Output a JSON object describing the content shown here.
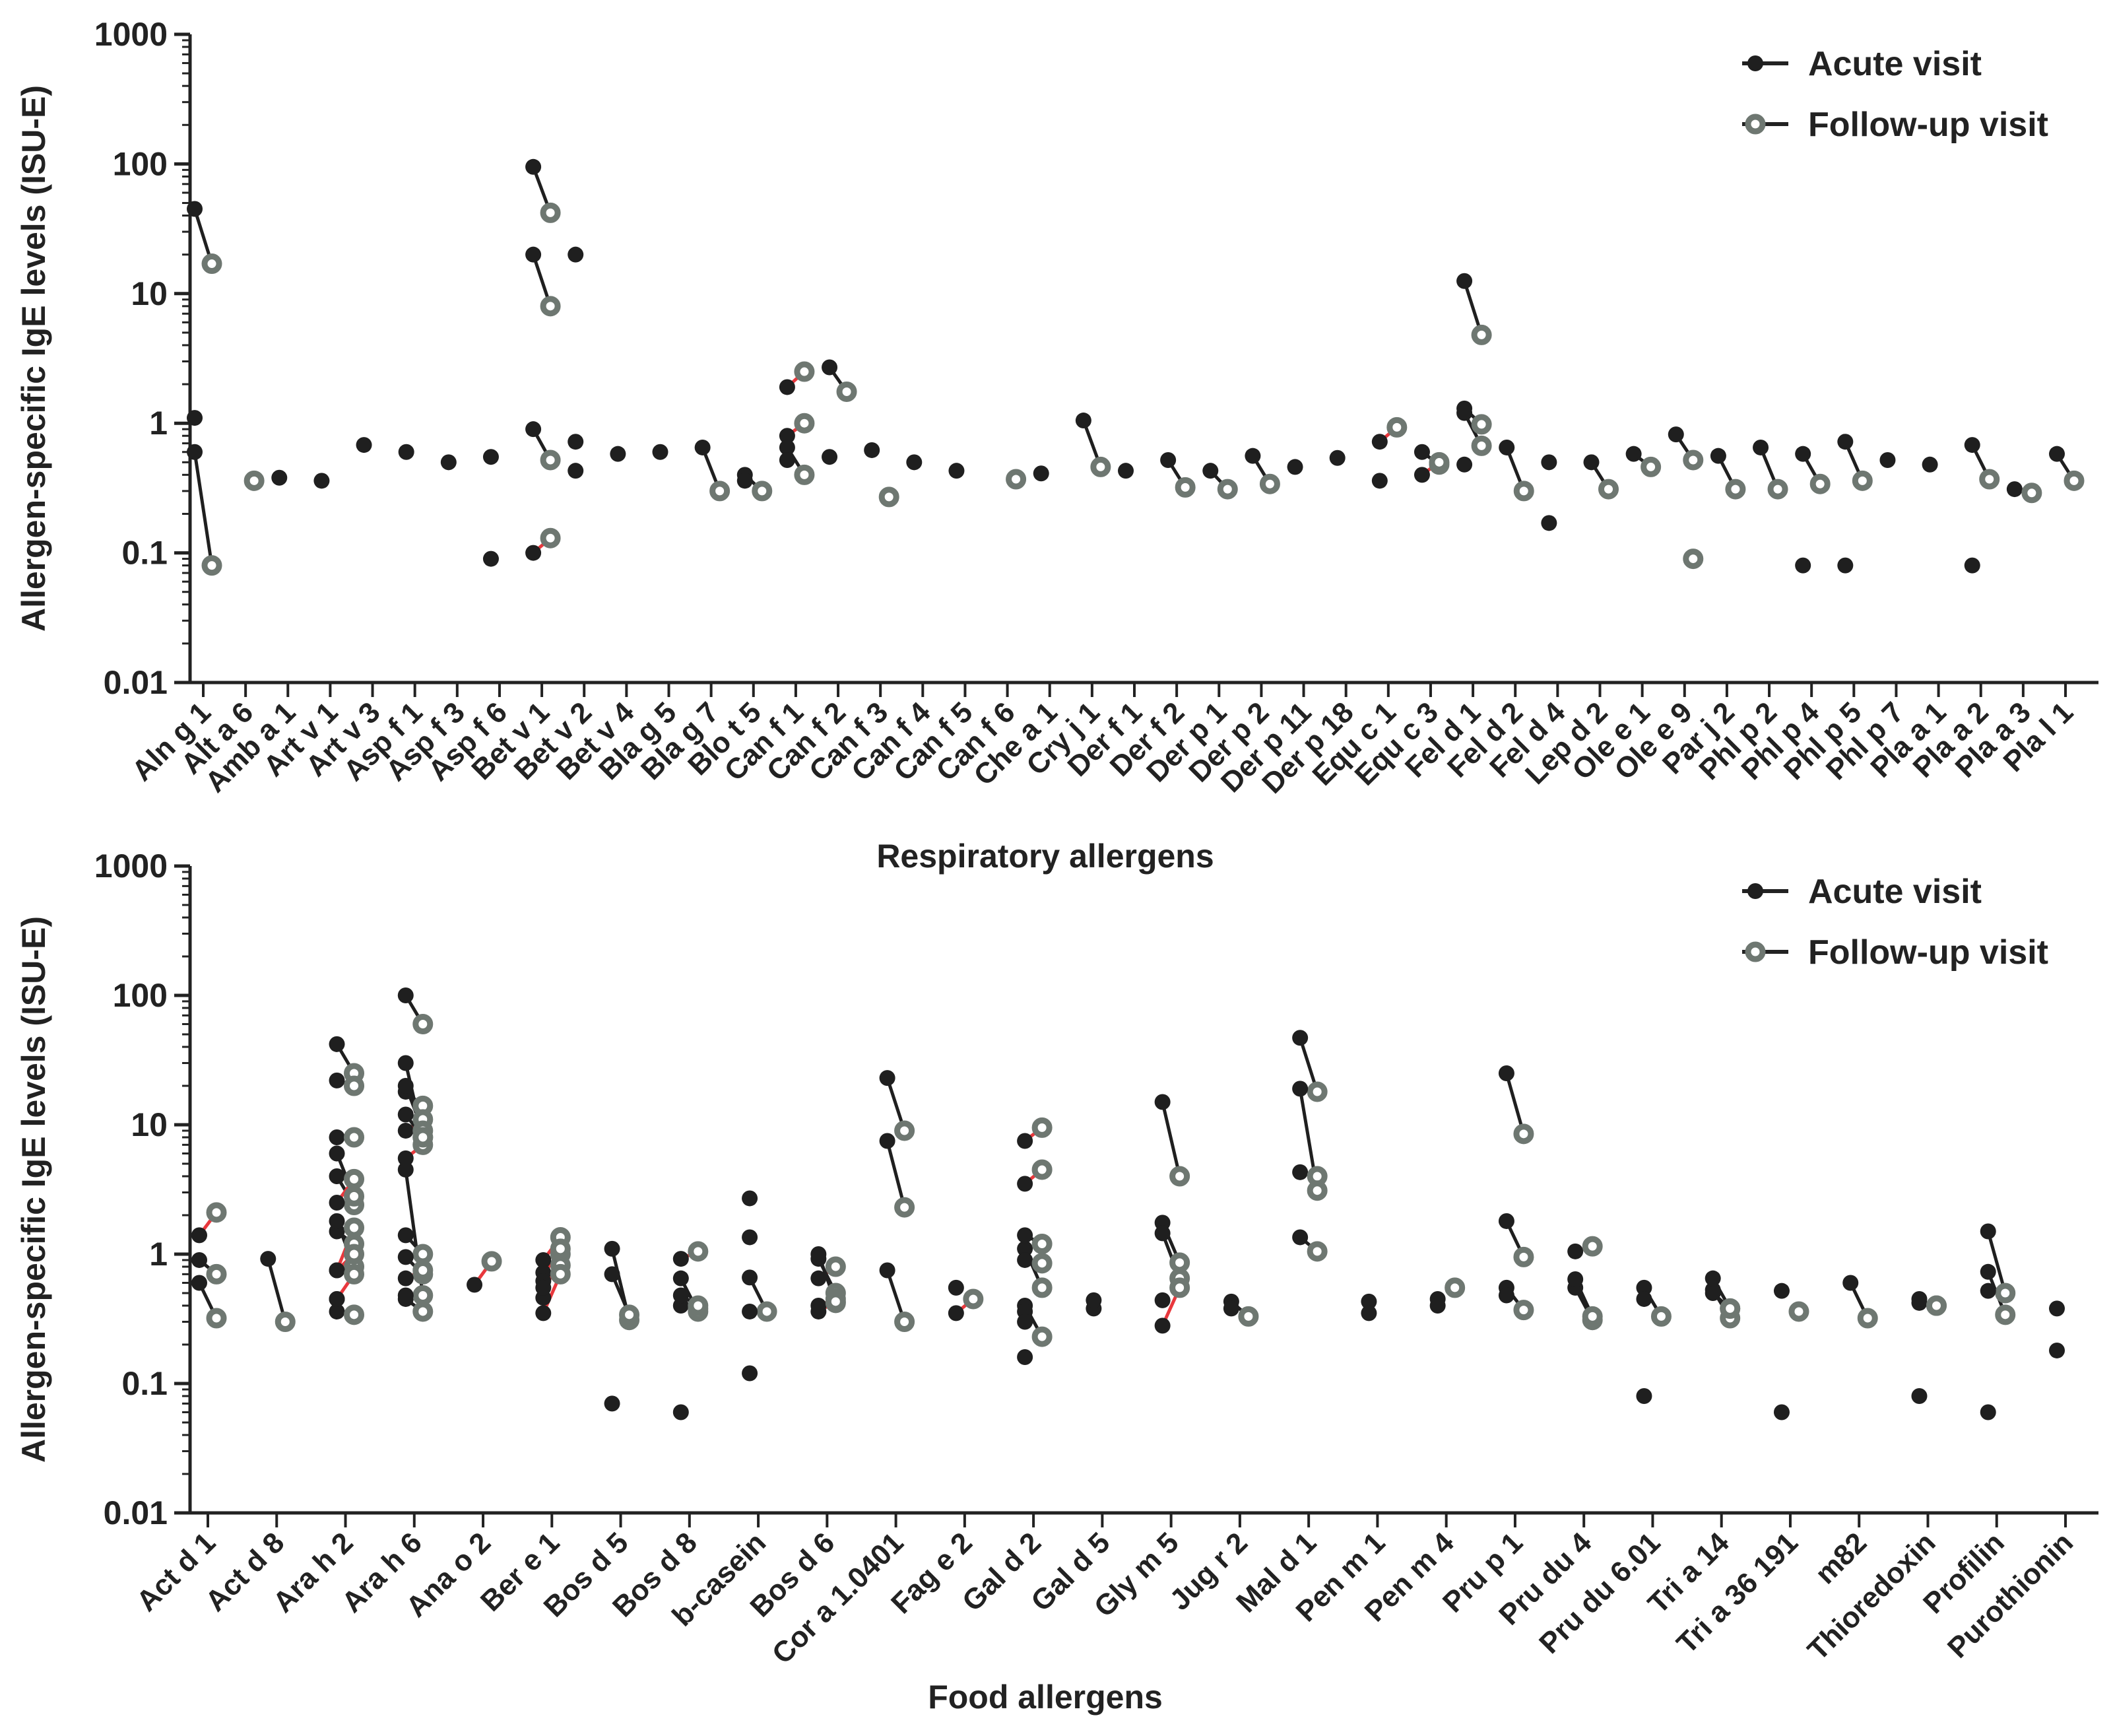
{
  "chart_data": [
    {
      "type": "scatter",
      "title": "",
      "xlabel": "Respiratory allergens",
      "ylabel": "Allergen-specific IgE levels (ISU-E)",
      "yscale": "log",
      "ylim": [
        0.01,
        1000
      ],
      "yticks": [
        "0.01",
        "0.1",
        "1",
        "10",
        "100",
        "1000"
      ],
      "legend": {
        "position": "top-right",
        "entries": [
          "Acute visit",
          "Follow-up visit"
        ]
      },
      "colors": {
        "acute": "#1f1f1f",
        "followup": "#6e7771",
        "pair_decrease": "#1f1f1f",
        "pair_increase": "#e8383d"
      },
      "categories": [
        "Aln g 1",
        "Alt a 6",
        "Amb a 1",
        "Art v 1",
        "Art v 3",
        "Asp f 1",
        "Asp f 3",
        "Asp f 6",
        "Bet v 1",
        "Bet v 2",
        "Bet v 4",
        "Bla g 5",
        "Bla g 7",
        "Blo t 5",
        "Can f 1",
        "Can f 2",
        "Can f 3",
        "Can f 4",
        "Can f 5",
        "Can f 6",
        "Che a 1",
        "Cry j 1",
        "Der f 1",
        "Der f 2",
        "Der p 1",
        "Der p 2",
        "Der p 11",
        "Der p 18",
        "Equ c 1",
        "Equ c 3",
        "Fel d 1",
        "Fel d 2",
        "Fel d 4",
        "Lep d 2",
        "Ole e 1",
        "Ole e 9",
        "Par j 2",
        "Phl p 2",
        "Phl p 4",
        "Phl p 5",
        "Phl p 7",
        "Pla a 1",
        "Pla a 2",
        "Pla a 3",
        "Pla l 1"
      ],
      "pairs": [
        {
          "cat": 0,
          "acute": 45,
          "followup": 17
        },
        {
          "cat": 0,
          "acute": 0.6,
          "followup": 0.08
        },
        {
          "cat": 8,
          "acute": 95,
          "followup": 42
        },
        {
          "cat": 8,
          "acute": 20,
          "followup": 8
        },
        {
          "cat": 8,
          "acute": 0.9,
          "followup": 0.52
        },
        {
          "cat": 8,
          "acute": 0.1,
          "followup": 0.13
        },
        {
          "cat": 12,
          "acute": 0.65,
          "followup": 0.3
        },
        {
          "cat": 13,
          "acute": 0.4,
          "followup": 0.3
        },
        {
          "cat": 14,
          "acute": 1.9,
          "followup": 2.5
        },
        {
          "cat": 14,
          "acute": 0.8,
          "followup": 1.0
        },
        {
          "cat": 14,
          "acute": 0.65,
          "followup": 0.4
        },
        {
          "cat": 15,
          "acute": 2.7,
          "followup": 1.75
        },
        {
          "cat": 21,
          "acute": 1.05,
          "followup": 0.46
        },
        {
          "cat": 23,
          "acute": 0.52,
          "followup": 0.32
        },
        {
          "cat": 24,
          "acute": 0.43,
          "followup": 0.31
        },
        {
          "cat": 25,
          "acute": 0.56,
          "followup": 0.34
        },
        {
          "cat": 28,
          "acute": 0.72,
          "followup": 0.93
        },
        {
          "cat": 29,
          "acute": 0.6,
          "followup": 0.48
        },
        {
          "cat": 29,
          "acute": 0.4,
          "followup": 0.5
        },
        {
          "cat": 30,
          "acute": 12.5,
          "followup": 4.8
        },
        {
          "cat": 30,
          "acute": 1.3,
          "followup": 0.98
        },
        {
          "cat": 30,
          "acute": 1.2,
          "followup": 0.67
        },
        {
          "cat": 31,
          "acute": 0.65,
          "followup": 0.3
        },
        {
          "cat": 33,
          "acute": 0.5,
          "followup": 0.31
        },
        {
          "cat": 34,
          "acute": 0.58,
          "followup": 0.46
        },
        {
          "cat": 35,
          "acute": 0.82,
          "followup": 0.52
        },
        {
          "cat": 36,
          "acute": 0.56,
          "followup": 0.31
        },
        {
          "cat": 37,
          "acute": 0.65,
          "followup": 0.31
        },
        {
          "cat": 38,
          "acute": 0.58,
          "followup": 0.34
        },
        {
          "cat": 39,
          "acute": 0.72,
          "followup": 0.36
        },
        {
          "cat": 42,
          "acute": 0.68,
          "followup": 0.37
        },
        {
          "cat": 43,
          "acute": 0.31,
          "followup": 0.29
        },
        {
          "cat": 44,
          "acute": 0.58,
          "followup": 0.36
        }
      ],
      "acute_only": [
        {
          "cat": 0,
          "value": 1.1
        },
        {
          "cat": 2,
          "value": 0.38
        },
        {
          "cat": 3,
          "value": 0.36
        },
        {
          "cat": 4,
          "value": 0.68
        },
        {
          "cat": 5,
          "value": 0.6
        },
        {
          "cat": 6,
          "value": 0.5
        },
        {
          "cat": 7,
          "value": 0.55
        },
        {
          "cat": 7,
          "value": 0.09
        },
        {
          "cat": 9,
          "value": 20
        },
        {
          "cat": 9,
          "value": 0.72
        },
        {
          "cat": 9,
          "value": 0.43
        },
        {
          "cat": 10,
          "value": 0.58
        },
        {
          "cat": 11,
          "value": 0.6
        },
        {
          "cat": 13,
          "value": 0.36
        },
        {
          "cat": 14,
          "value": 0.52
        },
        {
          "cat": 15,
          "value": 0.55
        },
        {
          "cat": 16,
          "value": 0.62
        },
        {
          "cat": 17,
          "value": 0.5
        },
        {
          "cat": 18,
          "value": 0.43
        },
        {
          "cat": 20,
          "value": 0.41
        },
        {
          "cat": 22,
          "value": 0.43
        },
        {
          "cat": 26,
          "value": 0.46
        },
        {
          "cat": 27,
          "value": 0.54
        },
        {
          "cat": 28,
          "value": 0.36
        },
        {
          "cat": 30,
          "value": 0.48
        },
        {
          "cat": 32,
          "value": 0.5
        },
        {
          "cat": 32,
          "value": 0.17
        },
        {
          "cat": 38,
          "value": 0.08
        },
        {
          "cat": 39,
          "value": 0.08
        },
        {
          "cat": 40,
          "value": 0.52
        },
        {
          "cat": 41,
          "value": 0.48
        },
        {
          "cat": 42,
          "value": 0.08
        }
      ],
      "followup_only": [
        {
          "cat": 1,
          "value": 0.36
        },
        {
          "cat": 16,
          "value": 0.27
        },
        {
          "cat": 19,
          "value": 0.37
        },
        {
          "cat": 35,
          "value": 0.09
        }
      ]
    },
    {
      "type": "scatter",
      "title": "",
      "xlabel": "Food allergens",
      "ylabel": "Allergen-specific IgE levels (ISU-E)",
      "yscale": "log",
      "ylim": [
        0.01,
        1000
      ],
      "yticks": [
        "0.01",
        "0.1",
        "1",
        "10",
        "100",
        "1000"
      ],
      "legend": {
        "position": "top-right",
        "entries": [
          "Acute visit",
          "Follow-up visit"
        ]
      },
      "colors": {
        "acute": "#1f1f1f",
        "followup": "#6e7771",
        "pair_decrease": "#1f1f1f",
        "pair_increase": "#e8383d"
      },
      "categories": [
        "Act d 1",
        "Act d 8",
        "Ara h 2",
        "Ara h 6",
        "Ana o 2",
        "Ber e 1",
        "Bos d 5",
        "Bos d 8",
        "b-casein",
        "Bos d 6",
        "Cor a 1.0401",
        "Fag e 2",
        "Gal d 2",
        "Gal d 5",
        "Gly m 5",
        "Jug r 2",
        "Mal d 1",
        "Pen m 1",
        "Pen m 4",
        "Pru p 1",
        "Pru du 4",
        "Pru du 6.01",
        "Tri a 14",
        "Tri a 36 191",
        "m82",
        "Thioredoxin",
        "Profilin",
        "Purothionin"
      ],
      "pairs": [
        {
          "cat": 0,
          "acute": 1.4,
          "followup": 2.1
        },
        {
          "cat": 0,
          "acute": 0.9,
          "followup": 0.7
        },
        {
          "cat": 0,
          "acute": 0.6,
          "followup": 0.32
        },
        {
          "cat": 1,
          "acute": 0.92,
          "followup": 0.3
        },
        {
          "cat": 2,
          "acute": 42,
          "followup": 25
        },
        {
          "cat": 2,
          "acute": 22,
          "followup": 20
        },
        {
          "cat": 2,
          "acute": 4,
          "followup": 2.4
        },
        {
          "cat": 2,
          "acute": 2.5,
          "followup": 3.8
        },
        {
          "cat": 2,
          "acute": 1.5,
          "followup": 1.2
        },
        {
          "cat": 2,
          "acute": 1.8,
          "followup": 0.8
        },
        {
          "cat": 2,
          "acute": 0.75,
          "followup": 1.0
        },
        {
          "cat": 2,
          "acute": 8,
          "followup": 8
        },
        {
          "cat": 2,
          "acute": 6,
          "followup": 2.8
        },
        {
          "cat": 2,
          "acute": 0.75,
          "followup": 1.6
        },
        {
          "cat": 2,
          "acute": 0.45,
          "followup": 0.7
        },
        {
          "cat": 2,
          "acute": 0.36,
          "followup": 0.34
        },
        {
          "cat": 3,
          "acute": 18,
          "followup": 14
        },
        {
          "cat": 3,
          "acute": 9,
          "followup": 11
        },
        {
          "cat": 3,
          "acute": 1.4,
          "followup": 1.0
        },
        {
          "cat": 3,
          "acute": 0.95,
          "followup": 0.7
        },
        {
          "cat": 3,
          "acute": 0.65,
          "followup": 0.75
        },
        {
          "cat": 3,
          "acute": 0.45,
          "followup": 0.36
        },
        {
          "cat": 3,
          "acute": 100,
          "followup": 60
        },
        {
          "cat": 3,
          "acute": 20,
          "followup": 9
        },
        {
          "cat": 3,
          "acute": 12,
          "followup": 8
        },
        {
          "cat": 3,
          "acute": 5.5,
          "followup": 7
        },
        {
          "cat": 3,
          "acute": 4.5,
          "followup": 0.48
        },
        {
          "cat": 3,
          "acute": 30,
          "followup": 8
        },
        {
          "cat": 4,
          "acute": 0.58,
          "followup": 0.88
        },
        {
          "cat": 5,
          "acute": 0.9,
          "followup": 1.35
        },
        {
          "cat": 5,
          "acute": 0.72,
          "followup": 1.0
        },
        {
          "cat": 5,
          "acute": 0.62,
          "followup": 0.82
        },
        {
          "cat": 5,
          "acute": 0.46,
          "followup": 1.1
        },
        {
          "cat": 5,
          "acute": 0.35,
          "followup": 0.7
        },
        {
          "cat": 6,
          "acute": 1.1,
          "followup": 0.31
        },
        {
          "cat": 6,
          "acute": 0.7,
          "followup": 0.34
        },
        {
          "cat": 7,
          "acute": 0.92,
          "followup": 1.05
        },
        {
          "cat": 7,
          "acute": 0.4,
          "followup": 0.38
        },
        {
          "cat": 7,
          "acute": 0.65,
          "followup": 0.36
        },
        {
          "cat": 7,
          "acute": 0.48,
          "followup": 0.4
        },
        {
          "cat": 8,
          "acute": 0.66,
          "followup": 0.36
        },
        {
          "cat": 9,
          "acute": 0.65,
          "followup": 0.8
        },
        {
          "cat": 9,
          "acute": 0.92,
          "followup": 0.5
        },
        {
          "cat": 9,
          "acute": 0.4,
          "followup": 0.45
        },
        {
          "cat": 9,
          "acute": 1.0,
          "followup": 0.42
        },
        {
          "cat": 9,
          "acute": 0.36,
          "followup": 0.43
        },
        {
          "cat": 10,
          "acute": 23,
          "followup": 9
        },
        {
          "cat": 10,
          "acute": 7.5,
          "followup": 2.3
        },
        {
          "cat": 10,
          "acute": 0.75,
          "followup": 0.3
        },
        {
          "cat": 11,
          "acute": 0.35,
          "followup": 0.45
        },
        {
          "cat": 12,
          "acute": 7.5,
          "followup": 9.5
        },
        {
          "cat": 12,
          "acute": 3.5,
          "followup": 4.5
        },
        {
          "cat": 12,
          "acute": 1.1,
          "followup": 0.55
        },
        {
          "cat": 12,
          "acute": 0.9,
          "followup": 0.85
        },
        {
          "cat": 12,
          "acute": 0.4,
          "followup": 0.23
        },
        {
          "cat": 12,
          "acute": 1.4,
          "followup": 1.2
        },
        {
          "cat": 14,
          "acute": 15,
          "followup": 4
        },
        {
          "cat": 14,
          "acute": 1.75,
          "followup": 0.86
        },
        {
          "cat": 14,
          "acute": 1.45,
          "followup": 0.65
        },
        {
          "cat": 14,
          "acute": 0.28,
          "followup": 0.55
        },
        {
          "cat": 15,
          "acute": 0.43,
          "followup": 0.33
        },
        {
          "cat": 16,
          "acute": 47,
          "followup": 18
        },
        {
          "cat": 16,
          "acute": 4.3,
          "followup": 4
        },
        {
          "cat": 16,
          "acute": 19,
          "followup": 3.1
        },
        {
          "cat": 16,
          "acute": 1.35,
          "followup": 1.05
        },
        {
          "cat": 19,
          "acute": 25,
          "followup": 8.5
        },
        {
          "cat": 19,
          "acute": 1.8,
          "followup": 0.95
        },
        {
          "cat": 19,
          "acute": 0.55,
          "followup": 0.37
        },
        {
          "cat": 20,
          "acute": 0.55,
          "followup": 0.31
        },
        {
          "cat": 20,
          "acute": 0.64,
          "followup": 0.33
        },
        {
          "cat": 20,
          "acute": 1.05,
          "followup": 1.15
        },
        {
          "cat": 21,
          "acute": 0.55,
          "followup": 0.33
        },
        {
          "cat": 22,
          "acute": 0.53,
          "followup": 0.32
        },
        {
          "cat": 22,
          "acute": 0.5,
          "followup": 0.38
        },
        {
          "cat": 22,
          "acute": 0.65,
          "followup": 0.38
        },
        {
          "cat": 24,
          "acute": 0.6,
          "followup": 0.32
        },
        {
          "cat": 25,
          "acute": 0.42,
          "followup": 0.4
        },
        {
          "cat": 26,
          "acute": 0.73,
          "followup": 0.34
        },
        {
          "cat": 26,
          "acute": 1.5,
          "followup": 0.5
        }
      ],
      "acute_only": [
        {
          "cat": 2,
          "value": 0.45
        },
        {
          "cat": 3,
          "value": 0.48
        },
        {
          "cat": 5,
          "value": 0.55
        },
        {
          "cat": 6,
          "value": 0.07
        },
        {
          "cat": 7,
          "value": 0.06
        },
        {
          "cat": 8,
          "value": 2.7
        },
        {
          "cat": 8,
          "value": 1.35
        },
        {
          "cat": 8,
          "value": 0.36
        },
        {
          "cat": 8,
          "value": 0.12
        },
        {
          "cat": 11,
          "value": 0.55
        },
        {
          "cat": 12,
          "value": 0.36
        },
        {
          "cat": 12,
          "value": 0.3
        },
        {
          "cat": 12,
          "value": 0.16
        },
        {
          "cat": 13,
          "value": 0.38
        },
        {
          "cat": 13,
          "value": 0.44
        },
        {
          "cat": 14,
          "value": 0.44
        },
        {
          "cat": 15,
          "value": 0.38
        },
        {
          "cat": 17,
          "value": 0.43
        },
        {
          "cat": 17,
          "value": 0.35
        },
        {
          "cat": 18,
          "value": 0.45
        },
        {
          "cat": 18,
          "value": 0.4
        },
        {
          "cat": 19,
          "value": 0.48
        },
        {
          "cat": 21,
          "value": 0.08
        },
        {
          "cat": 21,
          "value": 0.45
        },
        {
          "cat": 23,
          "value": 0.52
        },
        {
          "cat": 23,
          "value": 0.06
        },
        {
          "cat": 25,
          "value": 0.45
        },
        {
          "cat": 25,
          "value": 0.08
        },
        {
          "cat": 26,
          "value": 0.06
        },
        {
          "cat": 26,
          "value": 0.52
        },
        {
          "cat": 27,
          "value": 0.38
        },
        {
          "cat": 27,
          "value": 0.18
        }
      ],
      "followup_only": [
        {
          "cat": 18,
          "value": 0.55
        },
        {
          "cat": 23,
          "value": 0.36
        },
        {
          "cat": 25,
          "value": 0.4
        }
      ]
    }
  ]
}
